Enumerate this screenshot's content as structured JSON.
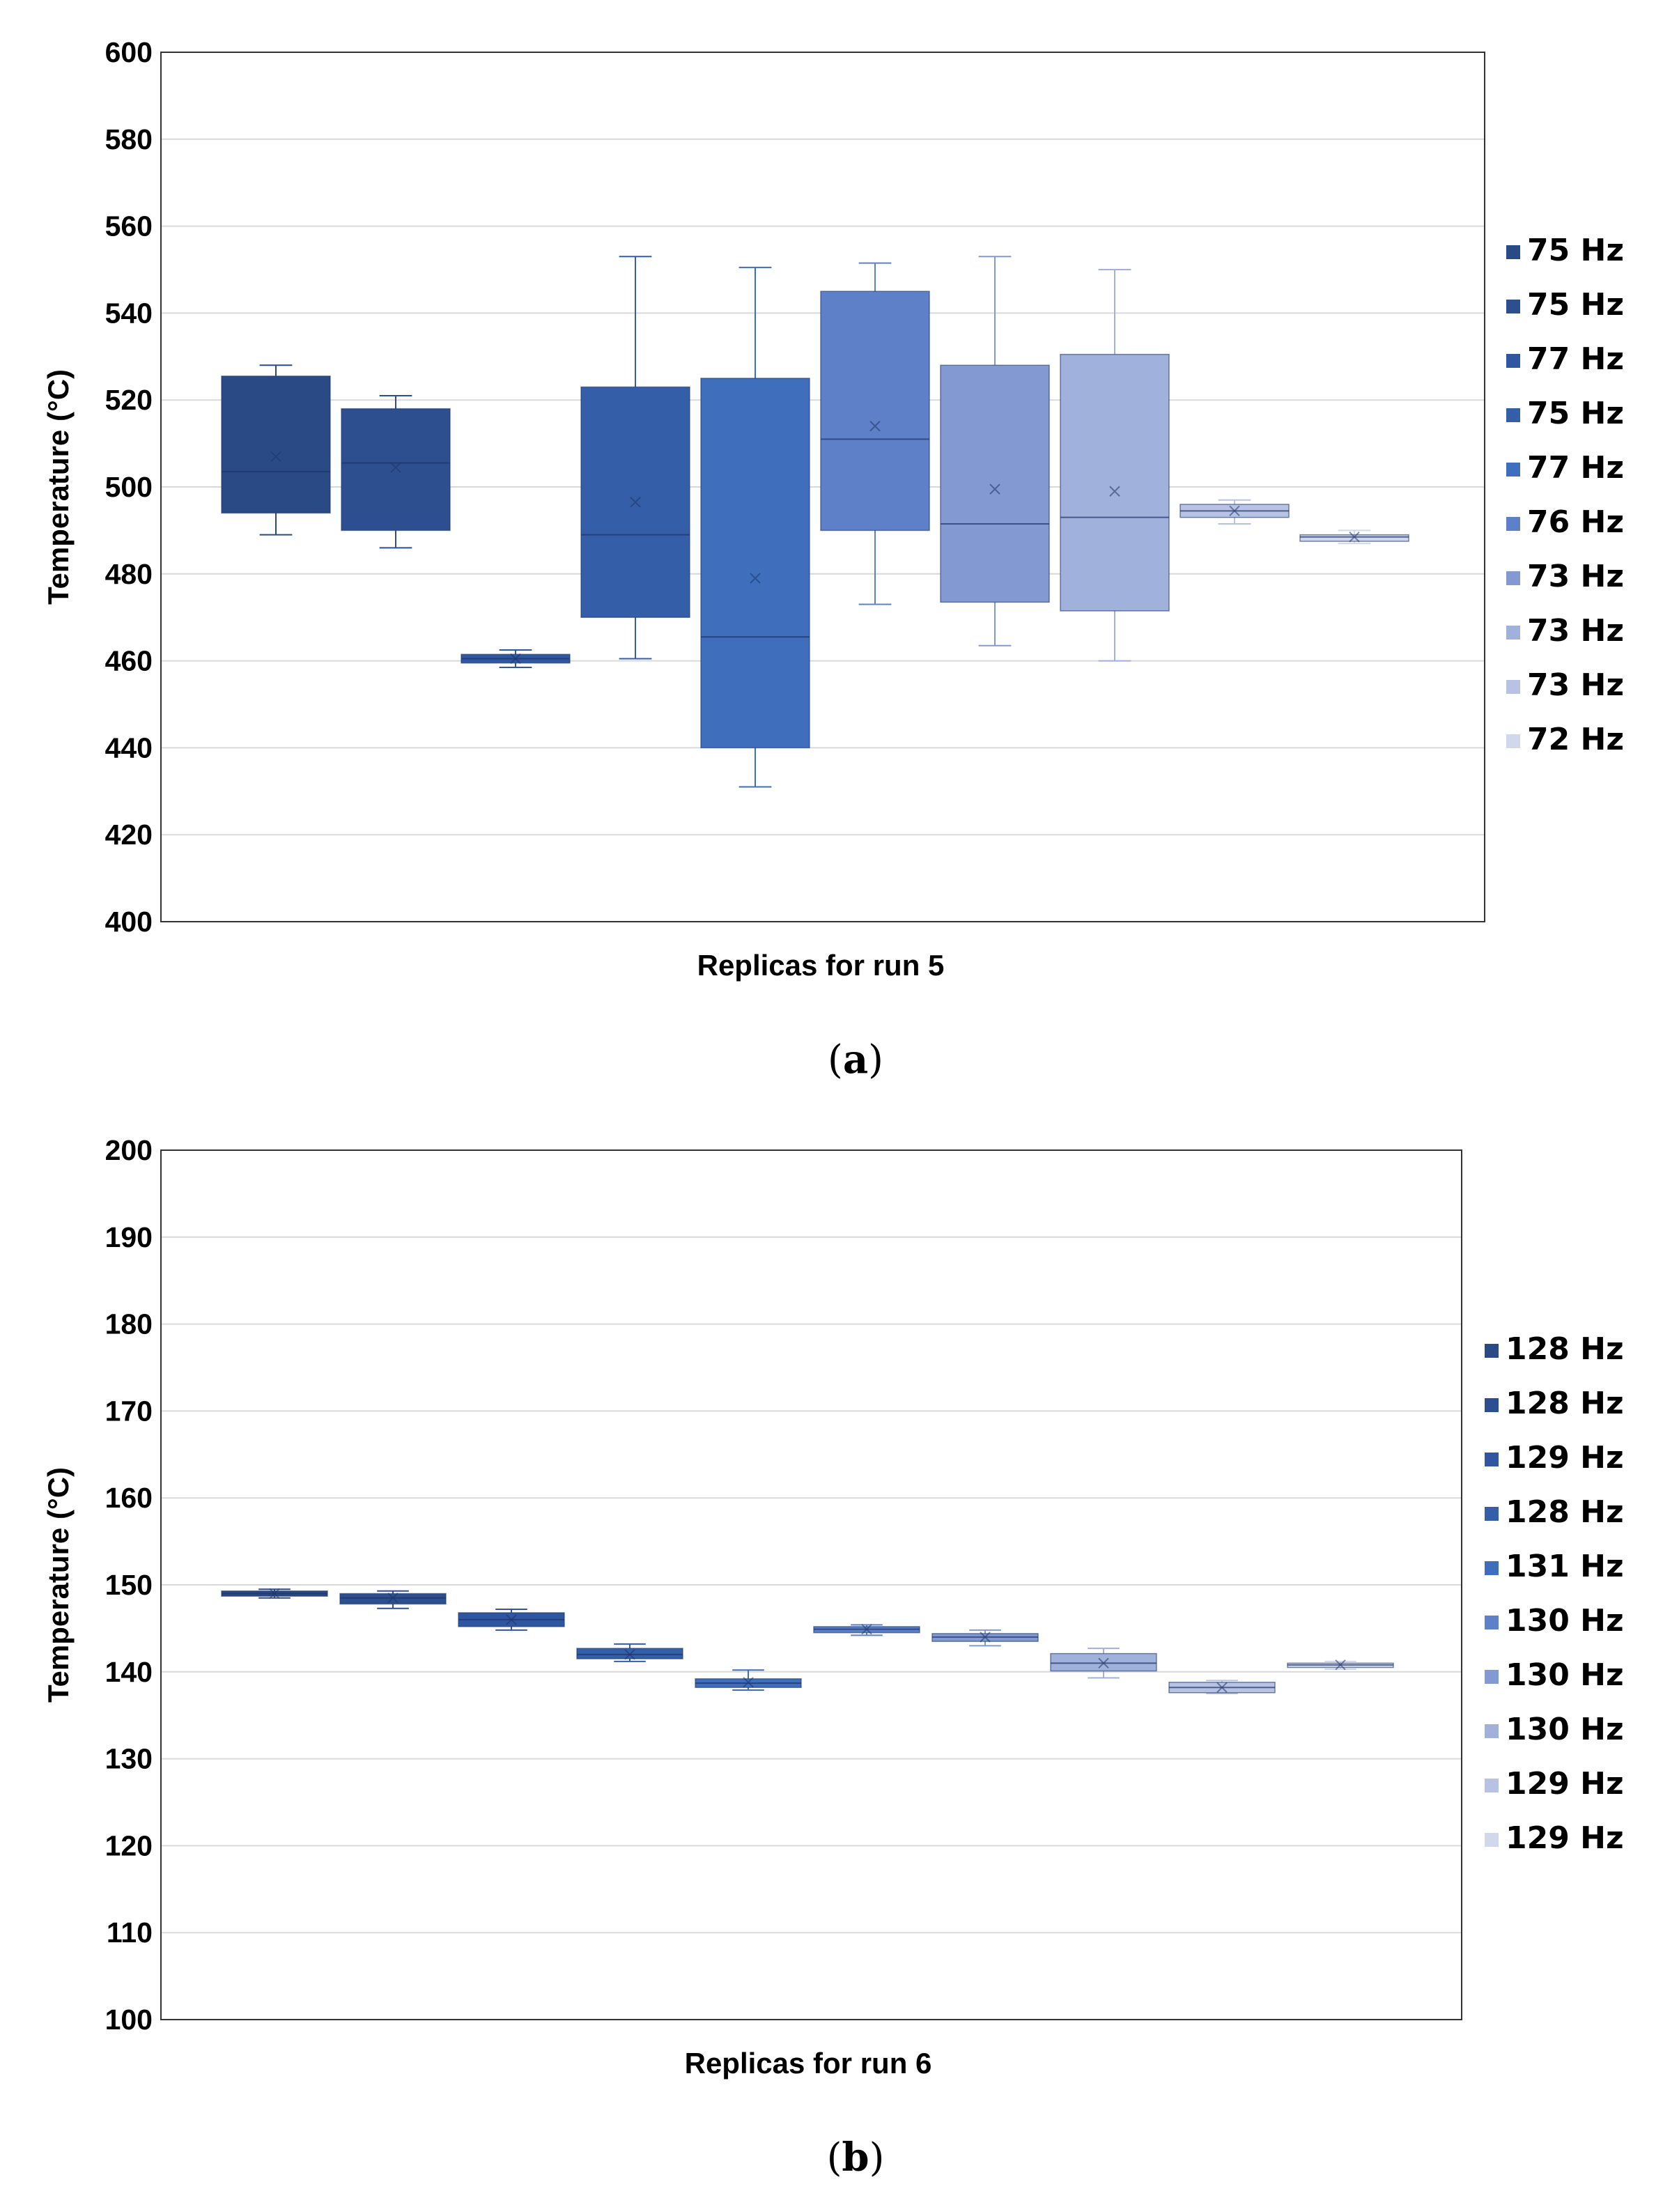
{
  "chart_data": [
    {
      "type": "box",
      "caption_letter": "a",
      "xlabel": "Replicas for run 5",
      "ylabel": "Temperature (°C)",
      "ylim": [
        400,
        600
      ],
      "ytick_step": 20,
      "grid": true,
      "legend_position": "right",
      "colors": [
        "#2a4a85",
        "#2d4f8f",
        "#2f56a0",
        "#345ea8",
        "#3e6ebc",
        "#5e80c8",
        "#8399d2",
        "#a0b1dc",
        "#b8c3e4",
        "#d1d8ec"
      ],
      "series": [
        {
          "name": "75 Hz",
          "min": 489,
          "q1": 494,
          "median": 503.5,
          "q3": 525.5,
          "max": 528,
          "mean": 507
        },
        {
          "name": "75 Hz",
          "min": 486,
          "q1": 490,
          "median": 505.5,
          "q3": 518,
          "max": 521,
          "mean": 504.5
        },
        {
          "name": "77 Hz",
          "min": 458.5,
          "q1": 459.5,
          "median": 460.5,
          "q3": 461.5,
          "max": 462.5,
          "mean": 460.5
        },
        {
          "name": "75 Hz",
          "min": 460.5,
          "q1": 470,
          "median": 489,
          "q3": 523,
          "max": 553,
          "mean": 496.5
        },
        {
          "name": "77 Hz",
          "min": 431,
          "q1": 440,
          "median": 465.5,
          "q3": 525,
          "max": 550.5,
          "mean": 479
        },
        {
          "name": "76 Hz",
          "min": 473,
          "q1": 490,
          "median": 511,
          "q3": 545,
          "max": 551.5,
          "mean": 514
        },
        {
          "name": "73 Hz",
          "min": 463.5,
          "q1": 473.5,
          "median": 491.5,
          "q3": 528,
          "max": 553,
          "mean": 499.5
        },
        {
          "name": "73 Hz",
          "min": 460,
          "q1": 471.5,
          "median": 493,
          "q3": 530.5,
          "max": 550,
          "mean": 499
        },
        {
          "name": "73 Hz",
          "min": 491.5,
          "q1": 493,
          "median": 494.5,
          "q3": 496,
          "max": 497,
          "mean": 494.5
        },
        {
          "name": "72 Hz",
          "min": 487,
          "q1": 487.5,
          "median": 488.5,
          "q3": 489,
          "max": 490,
          "mean": 488.5
        }
      ]
    },
    {
      "type": "box",
      "caption_letter": "b",
      "xlabel": "Replicas for run 6",
      "ylabel": "Temperature (°C)",
      "ylim": [
        100,
        200
      ],
      "ytick_step": 10,
      "grid": true,
      "legend_position": "right",
      "colors": [
        "#2a4a85",
        "#2d4f8f",
        "#2f56a0",
        "#345ea8",
        "#3e6ebc",
        "#5e80c8",
        "#8399d2",
        "#a0b1dc",
        "#b8c3e4",
        "#d1d8ec"
      ],
      "series": [
        {
          "name": "128 Hz",
          "min": 148.5,
          "q1": 148.7,
          "median": 149,
          "q3": 149.3,
          "max": 149.5,
          "mean": 149
        },
        {
          "name": "128 Hz",
          "min": 147.3,
          "q1": 147.8,
          "median": 148.5,
          "q3": 149,
          "max": 149.3,
          "mean": 148.5
        },
        {
          "name": "129 Hz",
          "min": 144.8,
          "q1": 145.2,
          "median": 146,
          "q3": 146.8,
          "max": 147.2,
          "mean": 146
        },
        {
          "name": "128 Hz",
          "min": 141.2,
          "q1": 141.5,
          "median": 142,
          "q3": 142.7,
          "max": 143.2,
          "mean": 142
        },
        {
          "name": "131 Hz",
          "min": 137.9,
          "q1": 138.2,
          "median": 138.7,
          "q3": 139.2,
          "max": 140.2,
          "mean": 138.8
        },
        {
          "name": "130 Hz",
          "min": 144.2,
          "q1": 144.5,
          "median": 144.9,
          "q3": 145.2,
          "max": 145.4,
          "mean": 144.9
        },
        {
          "name": "130 Hz",
          "min": 143,
          "q1": 143.5,
          "median": 144,
          "q3": 144.4,
          "max": 144.8,
          "mean": 144
        },
        {
          "name": "130 Hz",
          "min": 139.3,
          "q1": 140.1,
          "median": 141,
          "q3": 142.1,
          "max": 142.7,
          "mean": 141
        },
        {
          "name": "129 Hz",
          "min": 137.5,
          "q1": 137.6,
          "median": 138.2,
          "q3": 138.8,
          "max": 139,
          "mean": 138.2
        },
        {
          "name": "129 Hz",
          "min": 140.3,
          "q1": 140.5,
          "median": 140.8,
          "q3": 141,
          "max": 141.2,
          "mean": 140.8
        }
      ]
    }
  ]
}
